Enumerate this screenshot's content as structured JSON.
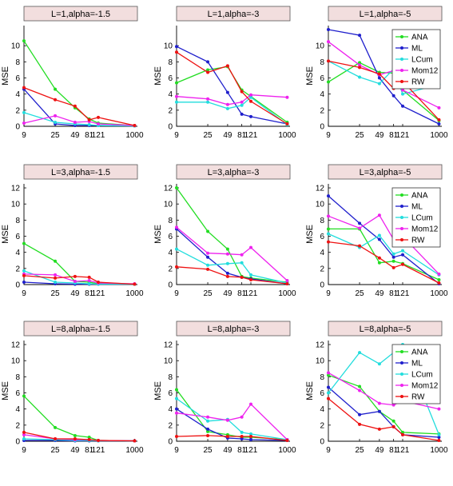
{
  "legend_position": "top-right",
  "series_colors": {
    "ANA": "#22dd22",
    "ML": "#1f1fcc",
    "LCum": "#22dddd",
    "Mom12": "#ee22ee",
    "RW": "#ee1111"
  },
  "chart_data": [
    {
      "type": "line",
      "title": "L=1,alpha=-1.5",
      "ylabel": "MSE",
      "x": [
        9,
        25,
        49,
        81,
        121,
        1000
      ],
      "xticks": [
        "9",
        "25",
        "49",
        "81",
        "121",
        "1000"
      ],
      "ylim": [
        0,
        12.5
      ],
      "yticks": [
        0,
        2,
        4,
        6,
        8,
        10
      ],
      "legend": false,
      "series": [
        {
          "name": "ANA",
          "values": [
            10.6,
            4.6,
            2.3,
            0.9,
            0.4,
            0.1
          ]
        },
        {
          "name": "ML",
          "values": [
            4.6,
            0.3,
            0.1,
            0.1,
            0.1,
            0.05
          ]
        },
        {
          "name": "LCum",
          "values": [
            1.7,
            0.5,
            0.3,
            0.2,
            0.1,
            0.05
          ]
        },
        {
          "name": "Mom12",
          "values": [
            0.4,
            1.3,
            0.5,
            0.6,
            0.3,
            0.1
          ]
        },
        {
          "name": "RW",
          "values": [
            4.8,
            3.3,
            2.5,
            0.8,
            1.1,
            0.1
          ]
        }
      ]
    },
    {
      "type": "line",
      "title": "L=1,alpha=-3",
      "ylabel": "MSE",
      "x": [
        9,
        25,
        49,
        81,
        121,
        1000
      ],
      "xticks": [
        "9",
        "25",
        "49",
        "81",
        "121",
        "1000"
      ],
      "ylim": [
        0,
        12.5
      ],
      "yticks": [
        0,
        2,
        4,
        6,
        8,
        10
      ],
      "legend": false,
      "series": [
        {
          "name": "ANA",
          "values": [
            5.4,
            7.0,
            7.4,
            4.5,
            3.7,
            0.5
          ]
        },
        {
          "name": "ML",
          "values": [
            9.9,
            8.0,
            4.2,
            1.5,
            1.2,
            0.3
          ]
        },
        {
          "name": "LCum",
          "values": [
            3.0,
            3.0,
            2.2,
            2.6,
            3.6,
            0.2
          ]
        },
        {
          "name": "Mom12",
          "values": [
            3.7,
            3.4,
            2.7,
            3.0,
            3.9,
            3.6
          ]
        },
        {
          "name": "RW",
          "values": [
            9.2,
            6.7,
            7.5,
            4.3,
            3.1,
            0.3
          ]
        }
      ]
    },
    {
      "type": "line",
      "title": "L=1,alpha=-5",
      "ylabel": "MSE",
      "x": [
        9,
        25,
        49,
        81,
        121,
        1000
      ],
      "xticks": [
        "9",
        "25",
        "49",
        "81",
        "121",
        "1000"
      ],
      "ylim": [
        0,
        12.5
      ],
      "yticks": [
        0,
        2,
        4,
        6,
        8,
        10
      ],
      "legend": true,
      "series": [
        {
          "name": "ANA",
          "values": [
            5.5,
            7.9,
            6.7,
            6.6,
            4.5,
            0.7
          ]
        },
        {
          "name": "ML",
          "values": [
            12.0,
            11.3,
            6.0,
            3.8,
            2.5,
            0.3
          ]
        },
        {
          "name": "LCum",
          "values": [
            8.1,
            6.1,
            5.3,
            7.1,
            4.0,
            5.2
          ]
        },
        {
          "name": "Mom12",
          "values": [
            10.5,
            7.6,
            6.4,
            6.9,
            4.5,
            2.3
          ]
        },
        {
          "name": "RW",
          "values": [
            8.1,
            7.3,
            6.5,
            4.7,
            5.6,
            0.8
          ]
        }
      ]
    },
    {
      "type": "line",
      "title": "L=3,alpha=-1.5",
      "ylabel": "MSE",
      "x": [
        9,
        25,
        49,
        81,
        121,
        1000
      ],
      "xticks": [
        "9",
        "25",
        "49",
        "81",
        "121",
        "1000"
      ],
      "ylim": [
        0,
        12.5
      ],
      "yticks": [
        0,
        2,
        4,
        6,
        8,
        10,
        12
      ],
      "legend": false,
      "series": [
        {
          "name": "ANA",
          "values": [
            5.1,
            2.9,
            0.4,
            0.3,
            0.1,
            0.05
          ]
        },
        {
          "name": "ML",
          "values": [
            0.3,
            0.1,
            0.05,
            0.05,
            0.05,
            0.05
          ]
        },
        {
          "name": "LCum",
          "values": [
            1.7,
            0.3,
            0.2,
            0.1,
            0.05,
            0.05
          ]
        },
        {
          "name": "Mom12",
          "values": [
            1.3,
            1.2,
            0.4,
            0.5,
            0.2,
            0.1
          ]
        },
        {
          "name": "RW",
          "values": [
            1.1,
            0.8,
            1.0,
            0.9,
            0.3,
            0.05
          ]
        }
      ]
    },
    {
      "type": "line",
      "title": "L=3,alpha=-3",
      "ylabel": "MSE",
      "x": [
        9,
        25,
        49,
        81,
        121,
        1000
      ],
      "xticks": [
        "9",
        "25",
        "49",
        "81",
        "121",
        "1000"
      ],
      "ylim": [
        0,
        12.5
      ],
      "yticks": [
        0,
        2,
        4,
        6,
        8,
        10,
        12
      ],
      "legend": false,
      "series": [
        {
          "name": "ANA",
          "values": [
            12.0,
            6.6,
            4.4,
            1.0,
            0.8,
            0.3
          ]
        },
        {
          "name": "ML",
          "values": [
            6.9,
            3.4,
            1.4,
            0.9,
            0.7,
            0.1
          ]
        },
        {
          "name": "LCum",
          "values": [
            4.4,
            2.4,
            2.6,
            2.7,
            1.2,
            0.2
          ]
        },
        {
          "name": "Mom12",
          "values": [
            7.1,
            3.9,
            3.8,
            3.7,
            4.6,
            0.5
          ]
        },
        {
          "name": "RW",
          "values": [
            2.2,
            1.9,
            1.0,
            0.9,
            0.6,
            0.1
          ]
        }
      ]
    },
    {
      "type": "line",
      "title": "L=3,alpha=-5",
      "ylabel": "MSE",
      "x": [
        9,
        25,
        49,
        81,
        121,
        1000
      ],
      "xticks": [
        "9",
        "25",
        "49",
        "81",
        "121",
        "1000"
      ],
      "ylim": [
        0,
        12.5
      ],
      "yticks": [
        0,
        2,
        4,
        6,
        8,
        10,
        12
      ],
      "legend": true,
      "series": [
        {
          "name": "ANA",
          "values": [
            6.9,
            6.9,
            2.7,
            2.9,
            2.6,
            0.6
          ]
        },
        {
          "name": "ML",
          "values": [
            11.0,
            7.6,
            5.6,
            3.4,
            3.7,
            0.1
          ]
        },
        {
          "name": "LCum",
          "values": [
            6.3,
            4.6,
            6.1,
            3.8,
            4.2,
            1.2
          ]
        },
        {
          "name": "Mom12",
          "values": [
            8.5,
            7.0,
            8.6,
            5.6,
            6.0,
            1.3
          ]
        },
        {
          "name": "RW",
          "values": [
            5.3,
            4.8,
            3.3,
            2.1,
            2.5,
            0.2
          ]
        }
      ]
    },
    {
      "type": "line",
      "title": "L=8,alpha=-1.5",
      "ylabel": "MSE",
      "x": [
        9,
        25,
        49,
        81,
        121,
        1000
      ],
      "xticks": [
        "9",
        "25",
        "49",
        "81",
        "121",
        "1000"
      ],
      "ylim": [
        0,
        12.5
      ],
      "yticks": [
        0,
        2,
        4,
        6,
        8,
        10,
        12
      ],
      "legend": false,
      "series": [
        {
          "name": "ANA",
          "values": [
            5.6,
            1.7,
            0.7,
            0.5,
            0.1,
            0.05
          ]
        },
        {
          "name": "ML",
          "values": [
            0.1,
            0.1,
            0.05,
            0.05,
            0.05,
            0.05
          ]
        },
        {
          "name": "LCum",
          "values": [
            0.3,
            0.2,
            0.1,
            0.1,
            0.05,
            0.05
          ]
        },
        {
          "name": "Mom12",
          "values": [
            0.8,
            0.3,
            0.2,
            0.2,
            0.1,
            0.05
          ]
        },
        {
          "name": "RW",
          "values": [
            1.1,
            0.3,
            0.3,
            0.2,
            0.1,
            0.05
          ]
        }
      ]
    },
    {
      "type": "line",
      "title": "L=8,alpha=-3",
      "ylabel": "MSE",
      "x": [
        9,
        25,
        49,
        81,
        121,
        1000
      ],
      "xticks": [
        "9",
        "25",
        "49",
        "81",
        "121",
        "1000"
      ],
      "ylim": [
        0,
        12.5
      ],
      "yticks": [
        0,
        2,
        4,
        6,
        8,
        10,
        12
      ],
      "legend": false,
      "series": [
        {
          "name": "ANA",
          "values": [
            6.4,
            1.2,
            0.8,
            0.5,
            0.5,
            0.2
          ]
        },
        {
          "name": "ML",
          "values": [
            4.0,
            1.5,
            0.4,
            0.3,
            0.2,
            0.1
          ]
        },
        {
          "name": "LCum",
          "values": [
            5.3,
            2.5,
            2.7,
            1.1,
            0.9,
            0.2
          ]
        },
        {
          "name": "Mom12",
          "values": [
            3.5,
            3.0,
            2.6,
            3.0,
            4.6,
            0.2
          ]
        },
        {
          "name": "RW",
          "values": [
            0.6,
            0.7,
            0.6,
            0.6,
            0.6,
            0.1
          ]
        }
      ]
    },
    {
      "type": "line",
      "title": "L=8,alpha=-5",
      "ylabel": "MSE",
      "x": [
        9,
        25,
        49,
        81,
        121,
        1000
      ],
      "xticks": [
        "9",
        "25",
        "49",
        "81",
        "121",
        "1000"
      ],
      "ylim": [
        0,
        12.5
      ],
      "yticks": [
        0,
        2,
        4,
        6,
        8,
        10,
        12
      ],
      "legend": true,
      "series": [
        {
          "name": "ANA",
          "values": [
            8.2,
            6.8,
            3.7,
            2.5,
            1.1,
            0.9
          ]
        },
        {
          "name": "ML",
          "values": [
            6.7,
            3.3,
            3.7,
            1.8,
            0.8,
            0.5
          ]
        },
        {
          "name": "LCum",
          "values": [
            6.0,
            11.0,
            9.6,
            11.0,
            12.0,
            0.8
          ]
        },
        {
          "name": "Mom12",
          "values": [
            8.5,
            6.3,
            4.7,
            4.5,
            5.0,
            4.0
          ]
        },
        {
          "name": "RW",
          "values": [
            5.3,
            2.1,
            1.5,
            1.8,
            0.8,
            0.1
          ]
        }
      ]
    }
  ]
}
